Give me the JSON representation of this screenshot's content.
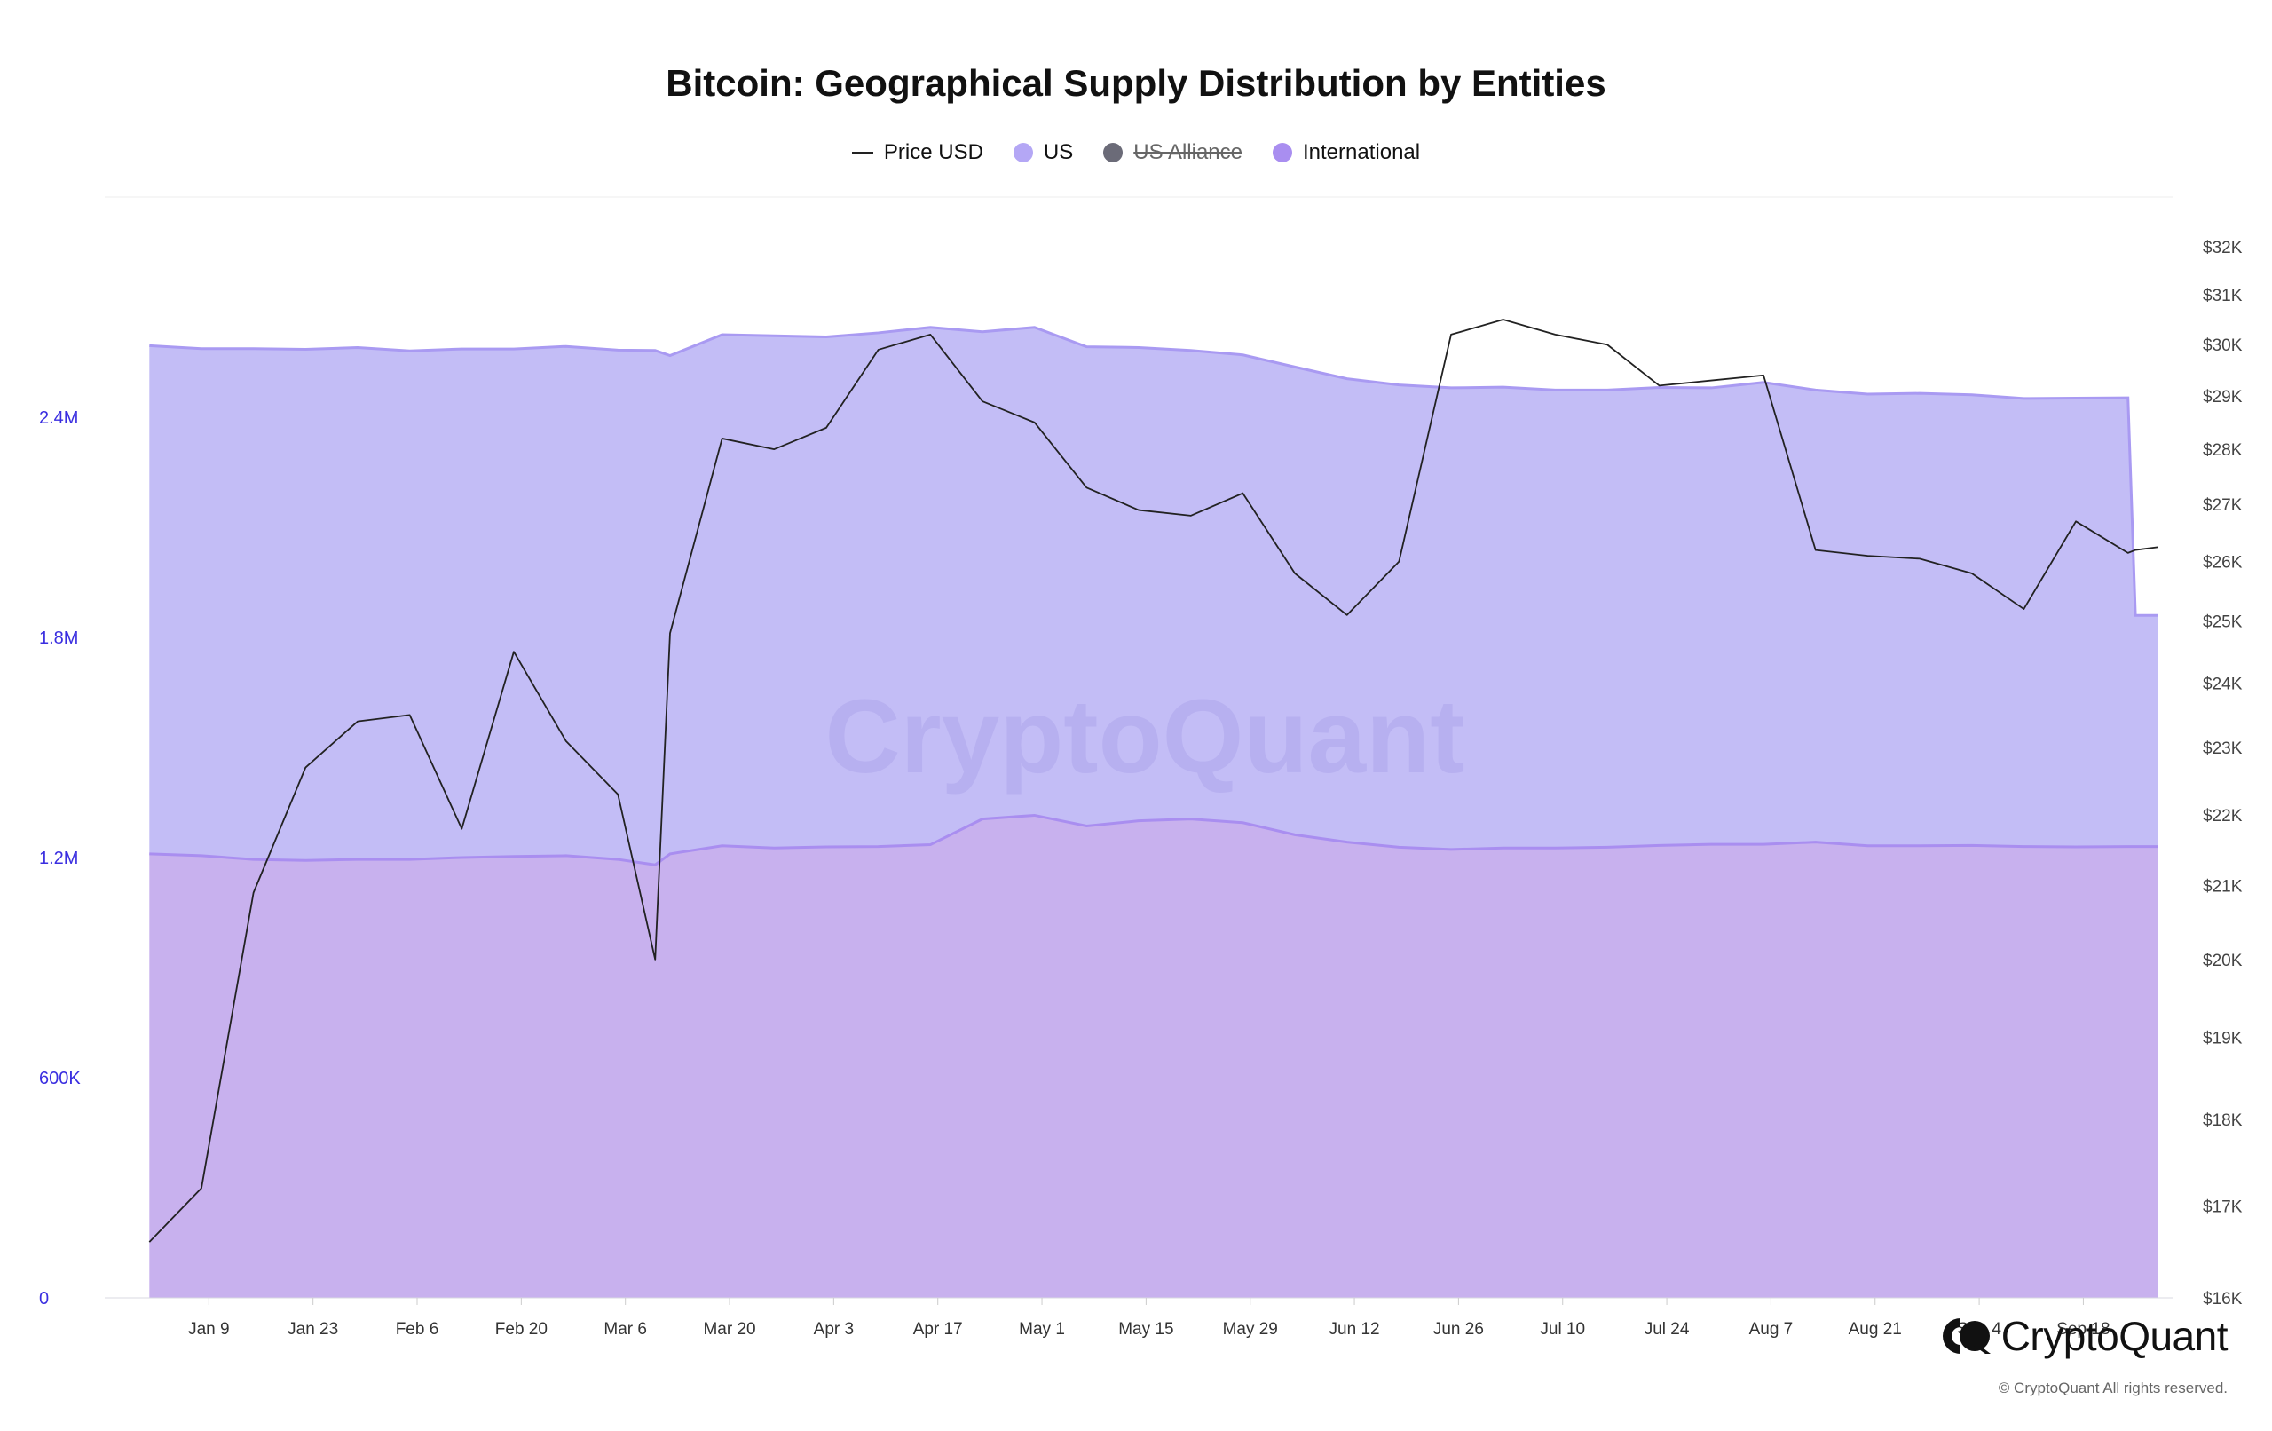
{
  "chart_data": {
    "type": "area",
    "title": "Bitcoin: Geographical Supply Distribution by Entities",
    "legend": [
      {
        "name": "Price USD",
        "type": "line",
        "color": "#222222",
        "hidden": false
      },
      {
        "name": "US",
        "type": "dot",
        "color": "#b4a7f5",
        "hidden": false
      },
      {
        "name": "US Alliance",
        "type": "dot",
        "color": "#6b6b78",
        "hidden": true
      },
      {
        "name": "International",
        "type": "dot",
        "color": "#a98ef0",
        "hidden": false
      }
    ],
    "x_ticks": [
      "Jan 9",
      "Jan 23",
      "Feb 6",
      "Feb 20",
      "Mar 6",
      "Mar 20",
      "Apr 3",
      "Apr 17",
      "May 1",
      "May 15",
      "May 29",
      "Jun 12",
      "Jun 26",
      "Jul 10",
      "Jul 24",
      "Aug 7",
      "Aug 21",
      "Sep 4",
      "Sep 18"
    ],
    "y_left_ticks": [
      "0",
      "600K",
      "1.2M",
      "1.8M",
      "2.4M"
    ],
    "y_left_range": [
      0,
      3000000
    ],
    "y_right_ticks": [
      "$16K",
      "$17K",
      "$18K",
      "$19K",
      "$20K",
      "$21K",
      "$22K",
      "$23K",
      "$24K",
      "$25K",
      "$26K",
      "$27K",
      "$28K",
      "$29K",
      "$30K",
      "$31K",
      "$32K"
    ],
    "y_right_range": [
      16000,
      32000
    ],
    "y_right_scale": "log",
    "x": [
      "2023-01-01",
      "2023-01-08",
      "2023-01-15",
      "2023-01-22",
      "2023-01-29",
      "2023-02-05",
      "2023-02-12",
      "2023-02-19",
      "2023-02-26",
      "2023-03-05",
      "2023-03-10",
      "2023-03-12",
      "2023-03-19",
      "2023-03-26",
      "2023-04-02",
      "2023-04-09",
      "2023-04-16",
      "2023-04-23",
      "2023-04-30",
      "2023-05-07",
      "2023-05-14",
      "2023-05-21",
      "2023-05-28",
      "2023-06-04",
      "2023-06-11",
      "2023-06-18",
      "2023-06-25",
      "2023-07-02",
      "2023-07-09",
      "2023-07-16",
      "2023-07-23",
      "2023-07-30",
      "2023-08-06",
      "2023-08-13",
      "2023-08-20",
      "2023-08-27",
      "2023-09-03",
      "2023-09-10",
      "2023-09-17",
      "2023-09-24",
      "2023-09-25",
      "2023-09-28"
    ],
    "series": [
      {
        "name": "International",
        "values": [
          1210000,
          1205000,
          1195000,
          1192000,
          1195000,
          1195000,
          1200000,
          1203000,
          1205000,
          1195000,
          1180000,
          1210000,
          1232000,
          1226000,
          1229000,
          1230000,
          1235000,
          1305000,
          1315000,
          1286000,
          1300000,
          1305000,
          1295000,
          1262000,
          1242000,
          1228000,
          1222000,
          1226000,
          1226000,
          1228000,
          1233000,
          1236000,
          1236000,
          1242000,
          1232000,
          1232000,
          1233000,
          1230000,
          1229000,
          1230000,
          1230000,
          1230000
        ]
      },
      {
        "name": "US",
        "values": [
          1385000,
          1382000,
          1392000,
          1393000,
          1395000,
          1386000,
          1386000,
          1383000,
          1388000,
          1388000,
          1402000,
          1358000,
          1393000,
          1396000,
          1390000,
          1400000,
          1410000,
          1328000,
          1330000,
          1306000,
          1290000,
          1277000,
          1275000,
          1275000,
          1263000,
          1260000,
          1258000,
          1256000,
          1248000,
          1246000,
          1248000,
          1244000,
          1259000,
          1232000,
          1231000,
          1233000,
          1228000,
          1221000,
          1223000,
          1223000,
          630000,
          630000
        ]
      },
      {
        "name": "Price USD",
        "values": [
          16600,
          17200,
          20900,
          22700,
          23400,
          23500,
          21800,
          24500,
          23100,
          22300,
          20000,
          24800,
          28200,
          28000,
          28400,
          29900,
          30200,
          28900,
          28500,
          27300,
          26900,
          26800,
          27200,
          25800,
          25100,
          26000,
          30200,
          30500,
          30200,
          30000,
          29200,
          29300,
          29400,
          26200,
          26100,
          26050,
          25800,
          25200,
          26700,
          26150,
          26200,
          26250
        ]
      }
    ]
  },
  "watermark": "CryptoQuant",
  "brand": {
    "name": "CryptoQuant",
    "copyright": "© CryptoQuant All rights reserved."
  },
  "colors": {
    "us_fill": "#c3bdf6",
    "us_line": "#a99af2",
    "intl_fill": "#c8b1ee",
    "intl_line": "#a98ef0",
    "price_line": "#222222",
    "left_axis_text": "#3a2ee0"
  }
}
